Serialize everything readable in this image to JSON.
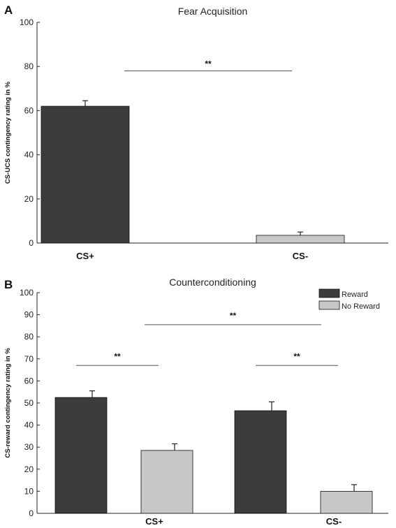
{
  "colors": {
    "dark": "#3c3c3c",
    "light": "#c8c8c8",
    "axis": "#222222",
    "line": "#333333"
  },
  "chart_data": [
    {
      "panel": "A",
      "type": "bar",
      "title": "Fear Acquisition",
      "ylabel": "CS-UCS contingency rating in %",
      "ylim": [
        0,
        100
      ],
      "yticks": [
        0,
        20,
        40,
        60,
        80,
        100
      ],
      "categories": [
        "CS+",
        "CS-"
      ],
      "values": [
        62,
        3.5
      ],
      "errors": [
        2.5,
        1.5
      ],
      "bar_colors": [
        "dark",
        "light"
      ],
      "significance": [
        {
          "from": 0,
          "to": 1,
          "y": 78,
          "label": "**"
        }
      ]
    },
    {
      "panel": "B",
      "type": "bar",
      "title": "Counterconditioning",
      "ylabel": "CS-reward contingency rating in %",
      "ylim": [
        0,
        100
      ],
      "yticks": [
        0,
        10,
        20,
        30,
        40,
        50,
        60,
        70,
        80,
        90,
        100
      ],
      "categories": [
        "CS+",
        "CS-"
      ],
      "series": [
        {
          "name": "Reward",
          "color": "dark",
          "values": [
            52.5,
            46.5
          ],
          "errors": [
            3.0,
            4.0
          ]
        },
        {
          "name": "No Reward",
          "color": "light",
          "values": [
            28.5,
            10
          ],
          "errors": [
            3.0,
            3.0
          ]
        }
      ],
      "legend": "top-right",
      "significance": [
        {
          "from": [
            0,
            0
          ],
          "to": [
            0,
            1
          ],
          "y": 67,
          "label": "**"
        },
        {
          "from": [
            0,
            1
          ],
          "to": [
            1,
            1
          ],
          "y": 85.5,
          "label": "**"
        },
        {
          "from": [
            1,
            0
          ],
          "to": [
            1,
            1
          ],
          "y": 67,
          "label": "**"
        }
      ]
    }
  ]
}
